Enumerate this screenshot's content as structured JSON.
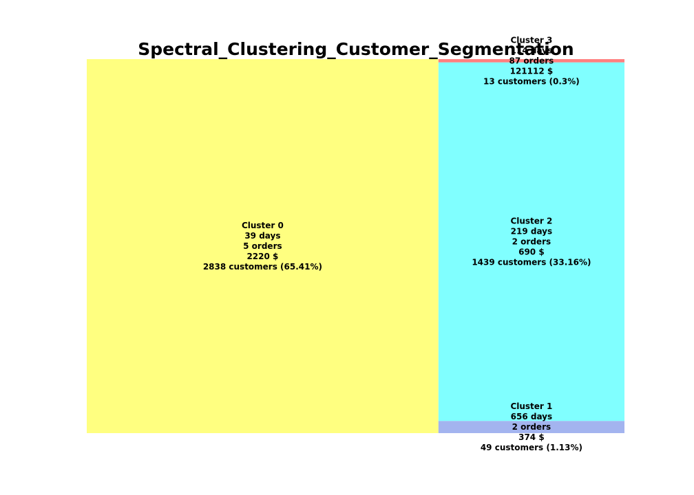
{
  "chart_data": {
    "type": "treemap",
    "title": "Spectral_Clustering_Customer_Segmentation",
    "nodes": [
      {
        "name": "Cluster 0",
        "days": "39 days",
        "orders": "5 orders",
        "amount": "2220 $",
        "customers": "2838 customers (65.41%)",
        "value": 2838,
        "color": "#ffff80"
      },
      {
        "name": "Cluster 1",
        "days": "656 days",
        "orders": "2 orders",
        "amount": "374 $",
        "customers": "49 customers (1.13%)",
        "value": 49,
        "color": "#a3b4ef"
      },
      {
        "name": "Cluster 2",
        "days": "219 days",
        "orders": "2 orders",
        "amount": "690 $",
        "customers": "1439 customers (33.16%)",
        "value": 1439,
        "color": "#80ffff"
      },
      {
        "name": "Cluster 3",
        "days": "114 days",
        "orders": "87 orders",
        "amount": "121112 $",
        "customers": "13 customers (0.3%)",
        "value": 13,
        "color": "#ff8080"
      }
    ]
  }
}
